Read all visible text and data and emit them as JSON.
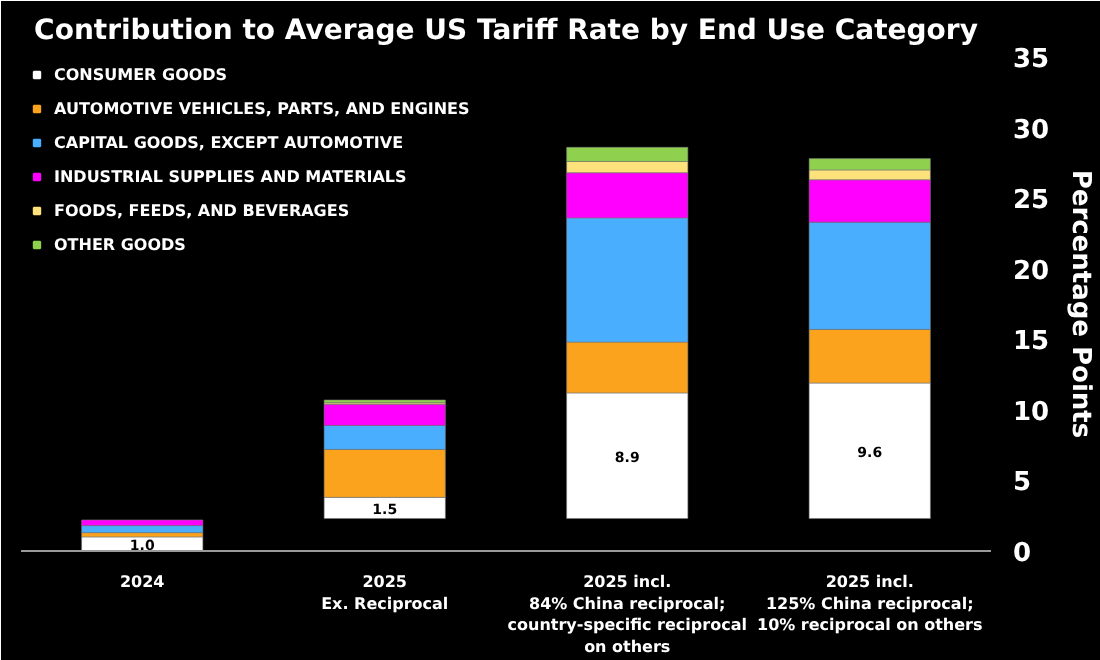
{
  "chart_data": {
    "type": "bar",
    "title": "Contribution to Average US Tariff Rate by End Use Category",
    "ylabel": "Percentage Points",
    "categories": [
      "2024",
      "2025\nEx. Reciprocal",
      "2025 incl.\n84% China reciprocal;\ncountry-specific reciprocal\non others",
      "2025 incl.\n125% China reciprocal;\n10% reciprocal on others"
    ],
    "series": [
      {
        "name": "CONSUMER GOODS",
        "color": "#ffffff",
        "base": [
          0,
          2.3,
          2.3,
          2.3
        ],
        "values": [
          1.0,
          1.5,
          8.9,
          9.6
        ],
        "value_labels": [
          "1.0",
          "1.5",
          "8.9",
          "9.6"
        ]
      },
      {
        "name": "AUTOMOTIVE VEHICLES, PARTS, AND ENGINES",
        "color": "#fba31c",
        "base": [
          1.0,
          3.8,
          11.2,
          11.9
        ],
        "values": [
          0.3,
          3.4,
          3.6,
          3.8
        ]
      },
      {
        "name": "CAPITAL GOODS, EXCEPT AUTOMOTIVE",
        "color": "#4aaeff",
        "base": [
          1.3,
          7.2,
          14.8,
          15.7
        ],
        "values": [
          0.5,
          1.7,
          8.8,
          7.6
        ]
      },
      {
        "name": "INDUSTRIAL SUPPLIES AND MATERIALS",
        "color": "#ff00ff",
        "base": [
          1.8,
          8.9,
          23.6,
          23.3
        ],
        "values": [
          0.4,
          1.5,
          3.2,
          3.0
        ]
      },
      {
        "name": "FOODS, FEEDS, AND BEVERAGES",
        "color": "#fde17a",
        "base": [
          null,
          10.4,
          26.8,
          26.3
        ],
        "values": [
          null,
          0.1,
          0.8,
          0.7
        ]
      },
      {
        "name": "OTHER GOODS",
        "color": "#8fd14f",
        "base": [
          null,
          10.5,
          27.6,
          27.0
        ],
        "values": [
          null,
          0.2,
          1.0,
          0.8
        ]
      }
    ],
    "ylim": [
      0,
      35
    ],
    "yticks": [
      0,
      5,
      10,
      15,
      20,
      25,
      30,
      35
    ],
    "grid": false,
    "legend": "top left",
    "marker": "square"
  }
}
